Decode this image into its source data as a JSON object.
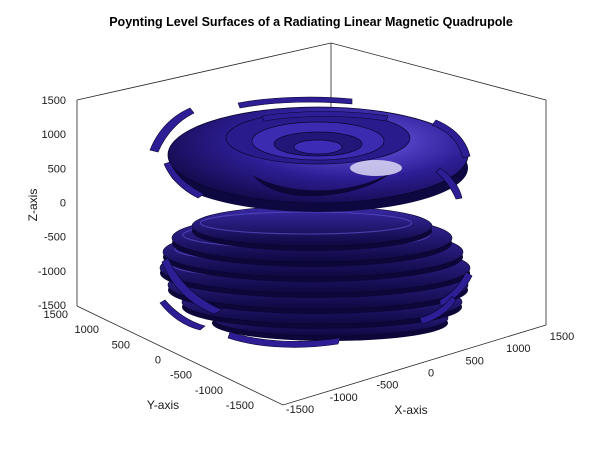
{
  "chart_data": {
    "type": "isosurface-3d",
    "title": "Poynting Level Surfaces of a Radiating Linear Magnetic Quadrupole",
    "xlabel": "X-axis",
    "ylabel": "Y-axis",
    "zlabel": "Z-axis",
    "xlim": [
      -1500,
      1500
    ],
    "ylim": [
      -1500,
      1500
    ],
    "zlim": [
      -1500,
      1500
    ],
    "xticks": [
      "-1500",
      "-1000",
      "-500",
      "0",
      "500",
      "1000",
      "1500"
    ],
    "yticks": [
      "-1500",
      "-1000",
      "-500",
      "0",
      "500",
      "1000",
      "1500"
    ],
    "zticks": [
      "-1500",
      "-1000",
      "-500",
      "0",
      "500",
      "1000",
      "1500"
    ],
    "surface_color": "#2e1e96",
    "grid": false,
    "lobes": [
      {
        "name": "upper",
        "z_center": 900
      },
      {
        "name": "lower",
        "z_center": -800
      }
    ]
  }
}
